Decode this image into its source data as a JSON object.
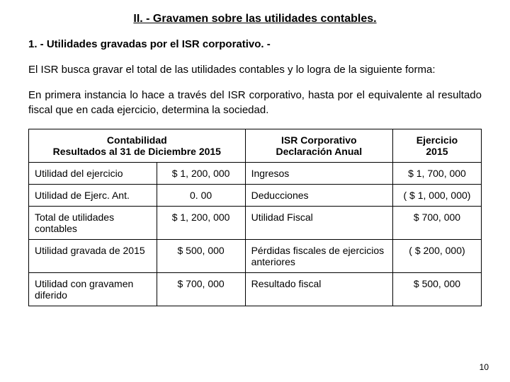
{
  "title": "II. -  Gravamen sobre las utilidades contables.",
  "subtitle": "1. -  Utilidades gravadas por el ISR corporativo. -",
  "para1": "El ISR busca gravar el total de las utilidades contables y lo logra de la siguiente forma:",
  "para2": "En primera instancia lo hace a través del ISR corporativo, hasta por el equivalente al resultado fiscal que en cada ejercicio, determina la sociedad.",
  "table": {
    "header": {
      "left_line1": "Contabilidad",
      "left_line2": "Resultados al 31 de Diciembre 2015",
      "mid_line1": "ISR Corporativo",
      "mid_line2": "Declaración Anual",
      "right_line1": "Ejercicio",
      "right_line2": "2015"
    },
    "rows": [
      {
        "left": "Utilidad del ejercicio",
        "amt1": "$ 1, 200, 000",
        "mid": "Ingresos",
        "amt2": "$ 1, 700, 000"
      },
      {
        "left": "Utilidad de Ejerc. Ant.",
        "amt1": "0. 00",
        "mid": "Deducciones",
        "amt2": "( $ 1, 000, 000)"
      },
      {
        "left": "Total de utilidades contables",
        "amt1": "$ 1, 200, 000",
        "mid": "Utilidad Fiscal",
        "amt2": "$  700, 000"
      },
      {
        "left": "Utilidad gravada de 2015",
        "amt1": "$  500, 000",
        "mid": "Pérdidas fiscales de ejercicios anteriores",
        "amt2": "( $  200, 000)"
      },
      {
        "left": "Utilidad con gravamen diferido",
        "amt1": "$  700, 000",
        "mid": "Resultado fiscal",
        "amt2": "$  500, 000"
      }
    ]
  },
  "page_number": "10",
  "colors": {
    "background": "#ffffff",
    "text": "#000000",
    "border": "#000000"
  }
}
